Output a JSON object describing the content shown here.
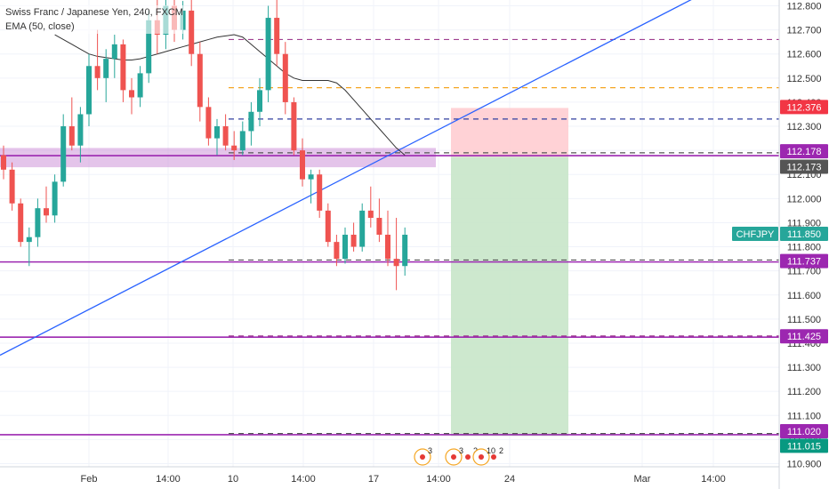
{
  "legend": {
    "symbol_title": "Swiss Franc / Japanese Yen, 240, FXCM",
    "indicator": "EMA (50, close)"
  },
  "chart_data": {
    "type": "candlestick",
    "symbol": "CHFJPY",
    "ylim": [
      110.885,
      112.87
    ],
    "y_ticks": [
      "112.800",
      "112.700",
      "112.600",
      "112.500",
      "112.400",
      "112.300",
      "112.200",
      "112.100",
      "112.000",
      "111.900",
      "111.800",
      "111.700",
      "111.600",
      "111.500",
      "111.400",
      "111.300",
      "111.200",
      "111.100",
      "111.000",
      "110.900"
    ],
    "x_ticks": [
      "Feb",
      "14:00",
      "10",
      "14:00",
      "17",
      "14:00",
      "24",
      "Mar",
      "14:00"
    ],
    "colors": {
      "up": "#26a69a",
      "down": "#ef5350",
      "ema": "#333333",
      "trendline": "#2962ff",
      "level": "#9c27b0",
      "badge_red": "#f23645",
      "badge_grey": "#555555",
      "badge_teal": "#26a69a",
      "badge_purple": "#9c27b0",
      "badge_green": "#089981"
    },
    "price_badges": [
      {
        "label": "112.376",
        "price": 112.376,
        "color": "#f23645"
      },
      {
        "label": "112.178",
        "price": 112.178,
        "color": "#9c27b0"
      },
      {
        "label": "112.173",
        "price": 112.173,
        "color": "#555555"
      },
      {
        "label": "CHFJPY",
        "price": 111.85,
        "color": "#26a69a",
        "is_name": true
      },
      {
        "label": "111.850",
        "price": 111.85,
        "color": "#26a69a"
      },
      {
        "label": "111.737",
        "price": 111.737,
        "color": "#9c27b0"
      },
      {
        "label": "111.425",
        "price": 111.425,
        "color": "#9c27b0"
      },
      {
        "label": "111.020",
        "price": 111.02,
        "color": "#9c27b0"
      },
      {
        "label": "111.015",
        "price": 111.015,
        "color": "#089981"
      }
    ],
    "horizontal_levels": [
      {
        "price": 112.178,
        "style": "solid",
        "color": "#9c27b0"
      },
      {
        "price": 111.737,
        "style": "solid",
        "color": "#9c27b0"
      },
      {
        "price": 111.425,
        "style": "solid",
        "color": "#9c27b0"
      },
      {
        "price": 111.02,
        "style": "solid",
        "color": "#9c27b0"
      },
      {
        "price": 112.66,
        "style": "dashed",
        "color": "#a04090"
      },
      {
        "price": 112.46,
        "style": "dashed",
        "color": "#f5a623"
      },
      {
        "price": 112.33,
        "style": "dashed",
        "color": "#303f9f"
      },
      {
        "price": 112.19,
        "style": "dashed",
        "color": "#555555"
      },
      {
        "price": 111.745,
        "style": "dashed",
        "color": "#555555"
      },
      {
        "price": 111.43,
        "style": "dashed",
        "color": "#a04090"
      },
      {
        "price": 111.025,
        "style": "dashed",
        "color": "#555555"
      }
    ],
    "zone": {
      "price_top": 112.21,
      "price_bottom": 112.13,
      "color": "#ce93d8"
    },
    "position": {
      "entry": 112.173,
      "stop": 112.376,
      "target": 111.015,
      "loss_color": "#ffcdd2",
      "profit_color": "#c8e6c9"
    },
    "event_badges": [
      "3",
      "3",
      "2",
      "10",
      "2"
    ],
    "candles": [
      {
        "o": 112.18,
        "h": 112.22,
        "l": 112.08,
        "c": 112.12
      },
      {
        "o": 112.12,
        "h": 112.15,
        "l": 111.95,
        "c": 111.98
      },
      {
        "o": 111.98,
        "h": 112.0,
        "l": 111.8,
        "c": 111.82
      },
      {
        "o": 111.82,
        "h": 111.88,
        "l": 111.72,
        "c": 111.84
      },
      {
        "o": 111.84,
        "h": 112.0,
        "l": 111.8,
        "c": 111.96
      },
      {
        "o": 111.96,
        "h": 112.05,
        "l": 111.9,
        "c": 111.93
      },
      {
        "o": 111.93,
        "h": 112.1,
        "l": 111.9,
        "c": 112.07
      },
      {
        "o": 112.07,
        "h": 112.35,
        "l": 112.05,
        "c": 112.3
      },
      {
        "o": 112.3,
        "h": 112.42,
        "l": 112.2,
        "c": 112.22
      },
      {
        "o": 112.22,
        "h": 112.38,
        "l": 112.15,
        "c": 112.35
      },
      {
        "o": 112.35,
        "h": 112.6,
        "l": 112.3,
        "c": 112.55
      },
      {
        "o": 112.55,
        "h": 112.7,
        "l": 112.45,
        "c": 112.5
      },
      {
        "o": 112.5,
        "h": 112.62,
        "l": 112.4,
        "c": 112.58
      },
      {
        "o": 112.58,
        "h": 112.68,
        "l": 112.5,
        "c": 112.64
      },
      {
        "o": 112.64,
        "h": 112.66,
        "l": 112.4,
        "c": 112.45
      },
      {
        "o": 112.45,
        "h": 112.5,
        "l": 112.35,
        "c": 112.42
      },
      {
        "o": 112.42,
        "h": 112.55,
        "l": 112.38,
        "c": 112.52
      },
      {
        "o": 112.52,
        "h": 112.78,
        "l": 112.48,
        "c": 112.74
      },
      {
        "o": 112.74,
        "h": 112.85,
        "l": 112.6,
        "c": 112.68
      },
      {
        "o": 112.68,
        "h": 112.85,
        "l": 112.62,
        "c": 112.8
      },
      {
        "o": 112.8,
        "h": 112.85,
        "l": 112.65,
        "c": 112.7
      },
      {
        "o": 112.7,
        "h": 112.82,
        "l": 112.66,
        "c": 112.78
      },
      {
        "o": 112.78,
        "h": 112.85,
        "l": 112.55,
        "c": 112.6
      },
      {
        "o": 112.6,
        "h": 112.65,
        "l": 112.32,
        "c": 112.38
      },
      {
        "o": 112.38,
        "h": 112.42,
        "l": 112.22,
        "c": 112.25
      },
      {
        "o": 112.25,
        "h": 112.33,
        "l": 112.18,
        "c": 112.3
      },
      {
        "o": 112.3,
        "h": 112.35,
        "l": 112.2,
        "c": 112.22
      },
      {
        "o": 112.22,
        "h": 112.28,
        "l": 112.16,
        "c": 112.2
      },
      {
        "o": 112.2,
        "h": 112.32,
        "l": 112.18,
        "c": 112.28
      },
      {
        "o": 112.28,
        "h": 112.4,
        "l": 112.22,
        "c": 112.36
      },
      {
        "o": 112.36,
        "h": 112.5,
        "l": 112.3,
        "c": 112.45
      },
      {
        "o": 112.45,
        "h": 112.8,
        "l": 112.4,
        "c": 112.75
      },
      {
        "o": 112.75,
        "h": 112.85,
        "l": 112.55,
        "c": 112.6
      },
      {
        "o": 112.6,
        "h": 112.65,
        "l": 112.35,
        "c": 112.4
      },
      {
        "o": 112.4,
        "h": 112.42,
        "l": 112.18,
        "c": 112.2
      },
      {
        "o": 112.2,
        "h": 112.25,
        "l": 112.05,
        "c": 112.08
      },
      {
        "o": 112.08,
        "h": 112.12,
        "l": 111.98,
        "c": 112.1
      },
      {
        "o": 112.1,
        "h": 112.12,
        "l": 111.92,
        "c": 111.95
      },
      {
        "o": 111.95,
        "h": 111.98,
        "l": 111.8,
        "c": 111.82
      },
      {
        "o": 111.82,
        "h": 111.85,
        "l": 111.72,
        "c": 111.75
      },
      {
        "o": 111.75,
        "h": 111.88,
        "l": 111.73,
        "c": 111.85
      },
      {
        "o": 111.85,
        "h": 111.9,
        "l": 111.78,
        "c": 111.8
      },
      {
        "o": 111.8,
        "h": 111.98,
        "l": 111.78,
        "c": 111.95
      },
      {
        "o": 111.95,
        "h": 112.05,
        "l": 111.88,
        "c": 111.92
      },
      {
        "o": 111.92,
        "h": 112.0,
        "l": 111.82,
        "c": 111.85
      },
      {
        "o": 111.85,
        "h": 111.95,
        "l": 111.72,
        "c": 111.75
      },
      {
        "o": 111.75,
        "h": 111.92,
        "l": 111.62,
        "c": 111.72
      },
      {
        "o": 111.72,
        "h": 111.88,
        "l": 111.68,
        "c": 111.85
      }
    ],
    "ema": [
      112.68,
      112.66,
      112.64,
      112.62,
      112.6,
      112.59,
      112.585,
      112.58,
      112.575,
      112.575,
      112.58,
      112.59,
      112.6,
      112.61,
      112.62,
      112.63,
      112.64,
      112.65,
      112.66,
      112.67,
      112.675,
      112.68,
      112.67,
      112.64,
      112.61,
      112.58,
      112.55,
      112.52,
      112.5,
      112.49,
      112.49,
      112.49,
      112.49,
      112.48,
      112.45,
      112.41,
      112.37,
      112.33,
      112.29,
      112.25,
      112.21,
      112.18
    ]
  }
}
